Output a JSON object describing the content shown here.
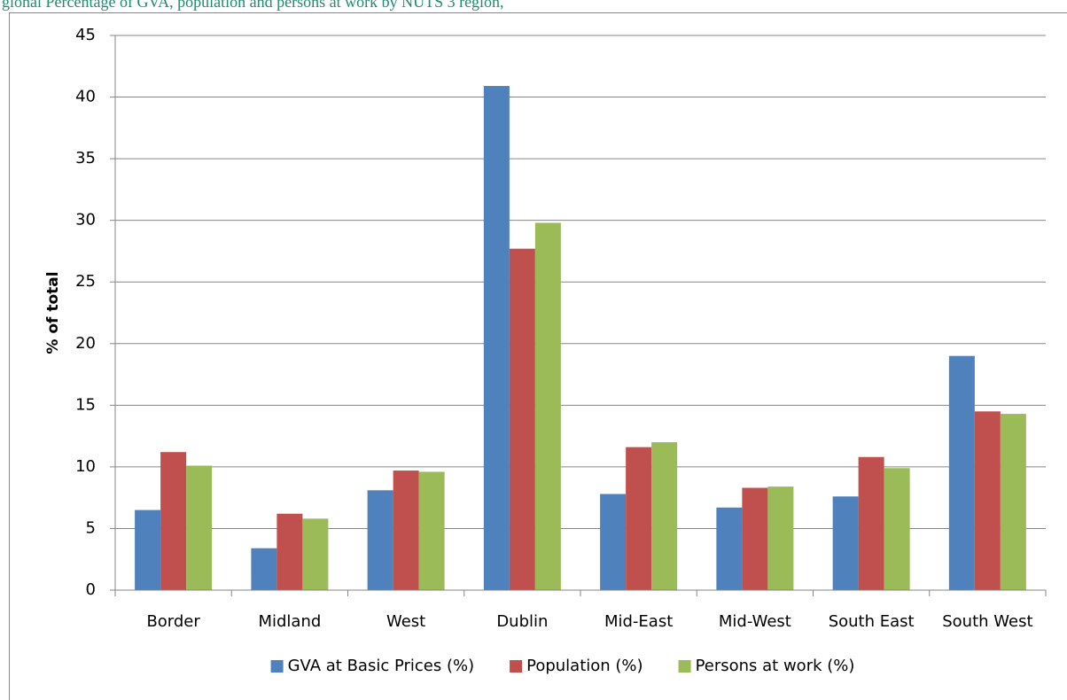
{
  "chart_data": {
    "type": "bar",
    "title": "gional Percentage of GVA, population and persons at work by NUTS 3 region,",
    "y_label": "% of total",
    "categories": [
      "Border",
      "Midland",
      "West",
      "Dublin",
      "Mid-East",
      "Mid-West",
      "South East",
      "South West"
    ],
    "series": [
      {
        "name": "GVA at Basic Prices (%)",
        "color": "#4f81bd",
        "values": [
          6.5,
          3.4,
          8.1,
          40.9,
          7.8,
          6.7,
          7.6,
          19.0
        ]
      },
      {
        "name": "Population (%)",
        "color": "#c0504d",
        "values": [
          11.2,
          6.2,
          9.7,
          27.7,
          11.6,
          8.3,
          10.8,
          14.5
        ]
      },
      {
        "name": "Persons at work (%)",
        "color": "#9bbb59",
        "values": [
          10.1,
          5.8,
          9.6,
          29.8,
          12.0,
          8.4,
          9.9,
          14.3
        ]
      }
    ],
    "ylim": [
      0,
      45
    ],
    "yticks": [
      0,
      5,
      10,
      15,
      20,
      25,
      30,
      35,
      40,
      45
    ],
    "grid": true,
    "legend": "bottom"
  }
}
